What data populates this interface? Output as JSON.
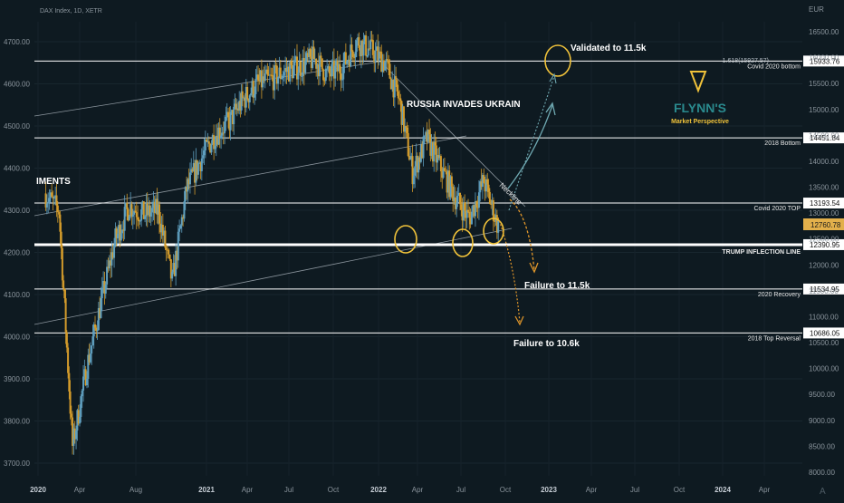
{
  "header": {
    "symbol": "DAX Index, 1D, XETR"
  },
  "currency": "EUR",
  "colors": {
    "background": "#0e1a21",
    "candle_up": "#5f9fbf",
    "candle_down": "#d39b2b",
    "line_white": "#ffffff",
    "circle": "#f0c23a",
    "arrow_up": "#6fa9b2",
    "arrow_down": "#e0962a",
    "brand": "#f0c23a",
    "last_price_badge": "#e3b04b"
  },
  "chart_data": {
    "type": "candlestick",
    "left_axis": {
      "ticks": [
        "3700.00",
        "3800.00",
        "3900.00",
        "4000.00",
        "4100.00",
        "4200.00",
        "4300.00",
        "4400.00",
        "4500.00",
        "4600.00",
        "4700.00"
      ]
    },
    "right_axis": {
      "ticks": [
        "8000.00",
        "8500.00",
        "9000.00",
        "9500.00",
        "10000.00",
        "10500.00",
        "11000.00",
        "11500.00",
        "12000.00",
        "12500.00",
        "13000.00",
        "13500.00",
        "14000.00",
        "14500.00",
        "15000.00",
        "15500.00",
        "16000.00",
        "16500.00"
      ]
    },
    "x_ticks": [
      "2020",
      "Apr",
      "Aug",
      "2021",
      "Apr",
      "Jul",
      "Oct",
      "2022",
      "Apr",
      "Jul",
      "Oct",
      "2023",
      "Apr",
      "Jul",
      "Oct",
      "2024",
      "Apr"
    ],
    "series": [
      {
        "x": "2020-01",
        "close": 4340
      },
      {
        "x": "2020-02",
        "close": 4300
      },
      {
        "x": "2020-03",
        "close": 3740
      },
      {
        "x": "2020-04",
        "close": 3930
      },
      {
        "x": "2020-05",
        "close": 4080
      },
      {
        "x": "2020-06",
        "close": 4230
      },
      {
        "x": "2020-07",
        "close": 4310
      },
      {
        "x": "2020-08",
        "close": 4290
      },
      {
        "x": "2020-09",
        "close": 4300
      },
      {
        "x": "2020-10",
        "close": 4130
      },
      {
        "x": "2020-11",
        "close": 4350
      },
      {
        "x": "2020-12",
        "close": 4420
      },
      {
        "x": "2021-01",
        "close": 4480
      },
      {
        "x": "2021-02",
        "close": 4510
      },
      {
        "x": "2021-03",
        "close": 4560
      },
      {
        "x": "2021-04",
        "close": 4600
      },
      {
        "x": "2021-05",
        "close": 4610
      },
      {
        "x": "2021-06",
        "close": 4630
      },
      {
        "x": "2021-07",
        "close": 4640
      },
      {
        "x": "2021-08",
        "close": 4660
      },
      {
        "x": "2021-09",
        "close": 4620
      },
      {
        "x": "2021-10",
        "close": 4640
      },
      {
        "x": "2021-11",
        "close": 4700
      },
      {
        "x": "2021-12",
        "close": 4680
      },
      {
        "x": "2022-01",
        "close": 4650
      },
      {
        "x": "2022-02",
        "close": 4560
      },
      {
        "x": "2022-03",
        "close": 4390
      },
      {
        "x": "2022-04",
        "close": 4470
      },
      {
        "x": "2022-05",
        "close": 4400
      },
      {
        "x": "2022-06",
        "close": 4330
      },
      {
        "x": "2022-07",
        "close": 4280
      },
      {
        "x": "2022-08",
        "close": 4370
      },
      {
        "x": "2022-09",
        "close": 4260
      }
    ],
    "levels": [
      {
        "value": "15933.76",
        "label": "Covid 2020 bottom"
      },
      {
        "value": "14451.84",
        "label": "2018 Bottom"
      },
      {
        "value": "13193.54",
        "label": "Covid 2020 TOP"
      },
      {
        "value": "12390.95",
        "label": "TRUMP INFLECTION LINE"
      },
      {
        "value": "11534.95",
        "label": "2020 Recovery"
      },
      {
        "value": "10686.05",
        "label": "2018 Top Reversal"
      }
    ],
    "last_price": "12760.78",
    "fib_label": "1.618(15927.57)"
  },
  "annotations": {
    "validated": "Validated to 11.5k",
    "russia": "RUSSIA INVADES UKRAIN",
    "neckline": "Neckline",
    "failure_1": "Failure to 11.5k",
    "failure_2": "Failure to 10.6k",
    "left_partial": "IMENTS"
  },
  "brand": {
    "name": "FLYNN'S",
    "tagline": "Market Perspective"
  }
}
